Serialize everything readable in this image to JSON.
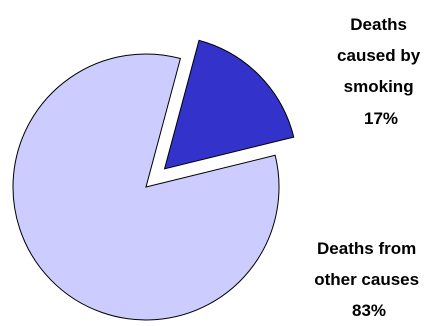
{
  "chart_data": {
    "type": "pie",
    "slices": [
      {
        "label_lines": [
          "Deaths",
          "caused by",
          "smoking"
        ],
        "percent_text": "17%",
        "value": 17,
        "color": "#3333CC",
        "exploded": true
      },
      {
        "label_lines": [
          "Deaths from",
          "other causes"
        ],
        "percent_text": "83%",
        "value": 83,
        "color": "#CCCCFF",
        "exploded": false
      }
    ],
    "title": "",
    "legend": "none"
  }
}
